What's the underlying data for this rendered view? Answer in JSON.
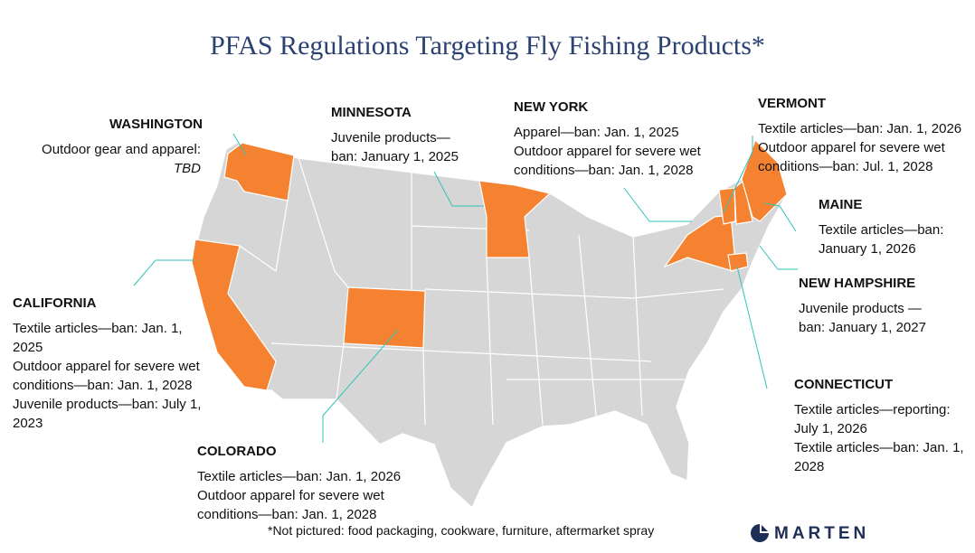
{
  "title": "PFAS Regulations Targeting Fly Fishing Products*",
  "states": [
    {
      "name": "WASHINGTON",
      "lines": [
        "Outdoor gear and apparel:",
        "TBD"
      ]
    },
    {
      "name": "MINNESOTA",
      "lines": [
        "Juvenile products—",
        "ban: January 1, 2025"
      ]
    },
    {
      "name": "NEW YORK",
      "lines": [
        "Apparel—ban: Jan. 1, 2025",
        "Outdoor apparel for severe wet conditions—ban: Jan. 1, 2028"
      ]
    },
    {
      "name": "VERMONT",
      "lines": [
        "Textile articles—ban: Jan. 1, 2026",
        "Outdoor apparel for severe wet conditions—ban: Jul. 1, 2028"
      ]
    },
    {
      "name": "MAINE",
      "lines": [
        "Textile articles—ban: January 1, 2026"
      ]
    },
    {
      "name": "NEW HAMPSHIRE",
      "lines": [
        "Juvenile products — ban: January 1, 2027"
      ]
    },
    {
      "name": "CALIFORNIA",
      "lines": [
        "Textile articles—ban: Jan. 1, 2025",
        "Outdoor apparel for severe wet conditions—ban: Jan. 1, 2028",
        "Juvenile products—ban: July 1, 2023"
      ]
    },
    {
      "name": "COLORADO",
      "lines": [
        "Textile articles—ban: Jan. 1, 2026",
        "Outdoor apparel for severe wet conditions—ban: Jan. 1, 2028"
      ]
    },
    {
      "name": "CONNECTICUT",
      "lines": [
        "Textile articles—reporting: July 1, 2026",
        "Textile articles—ban: Jan. 1, 2028"
      ]
    }
  ],
  "footnote": "*Not pictured: food packaging, cookware, furniture, aftermarket spray",
  "logo": "MARTEN"
}
